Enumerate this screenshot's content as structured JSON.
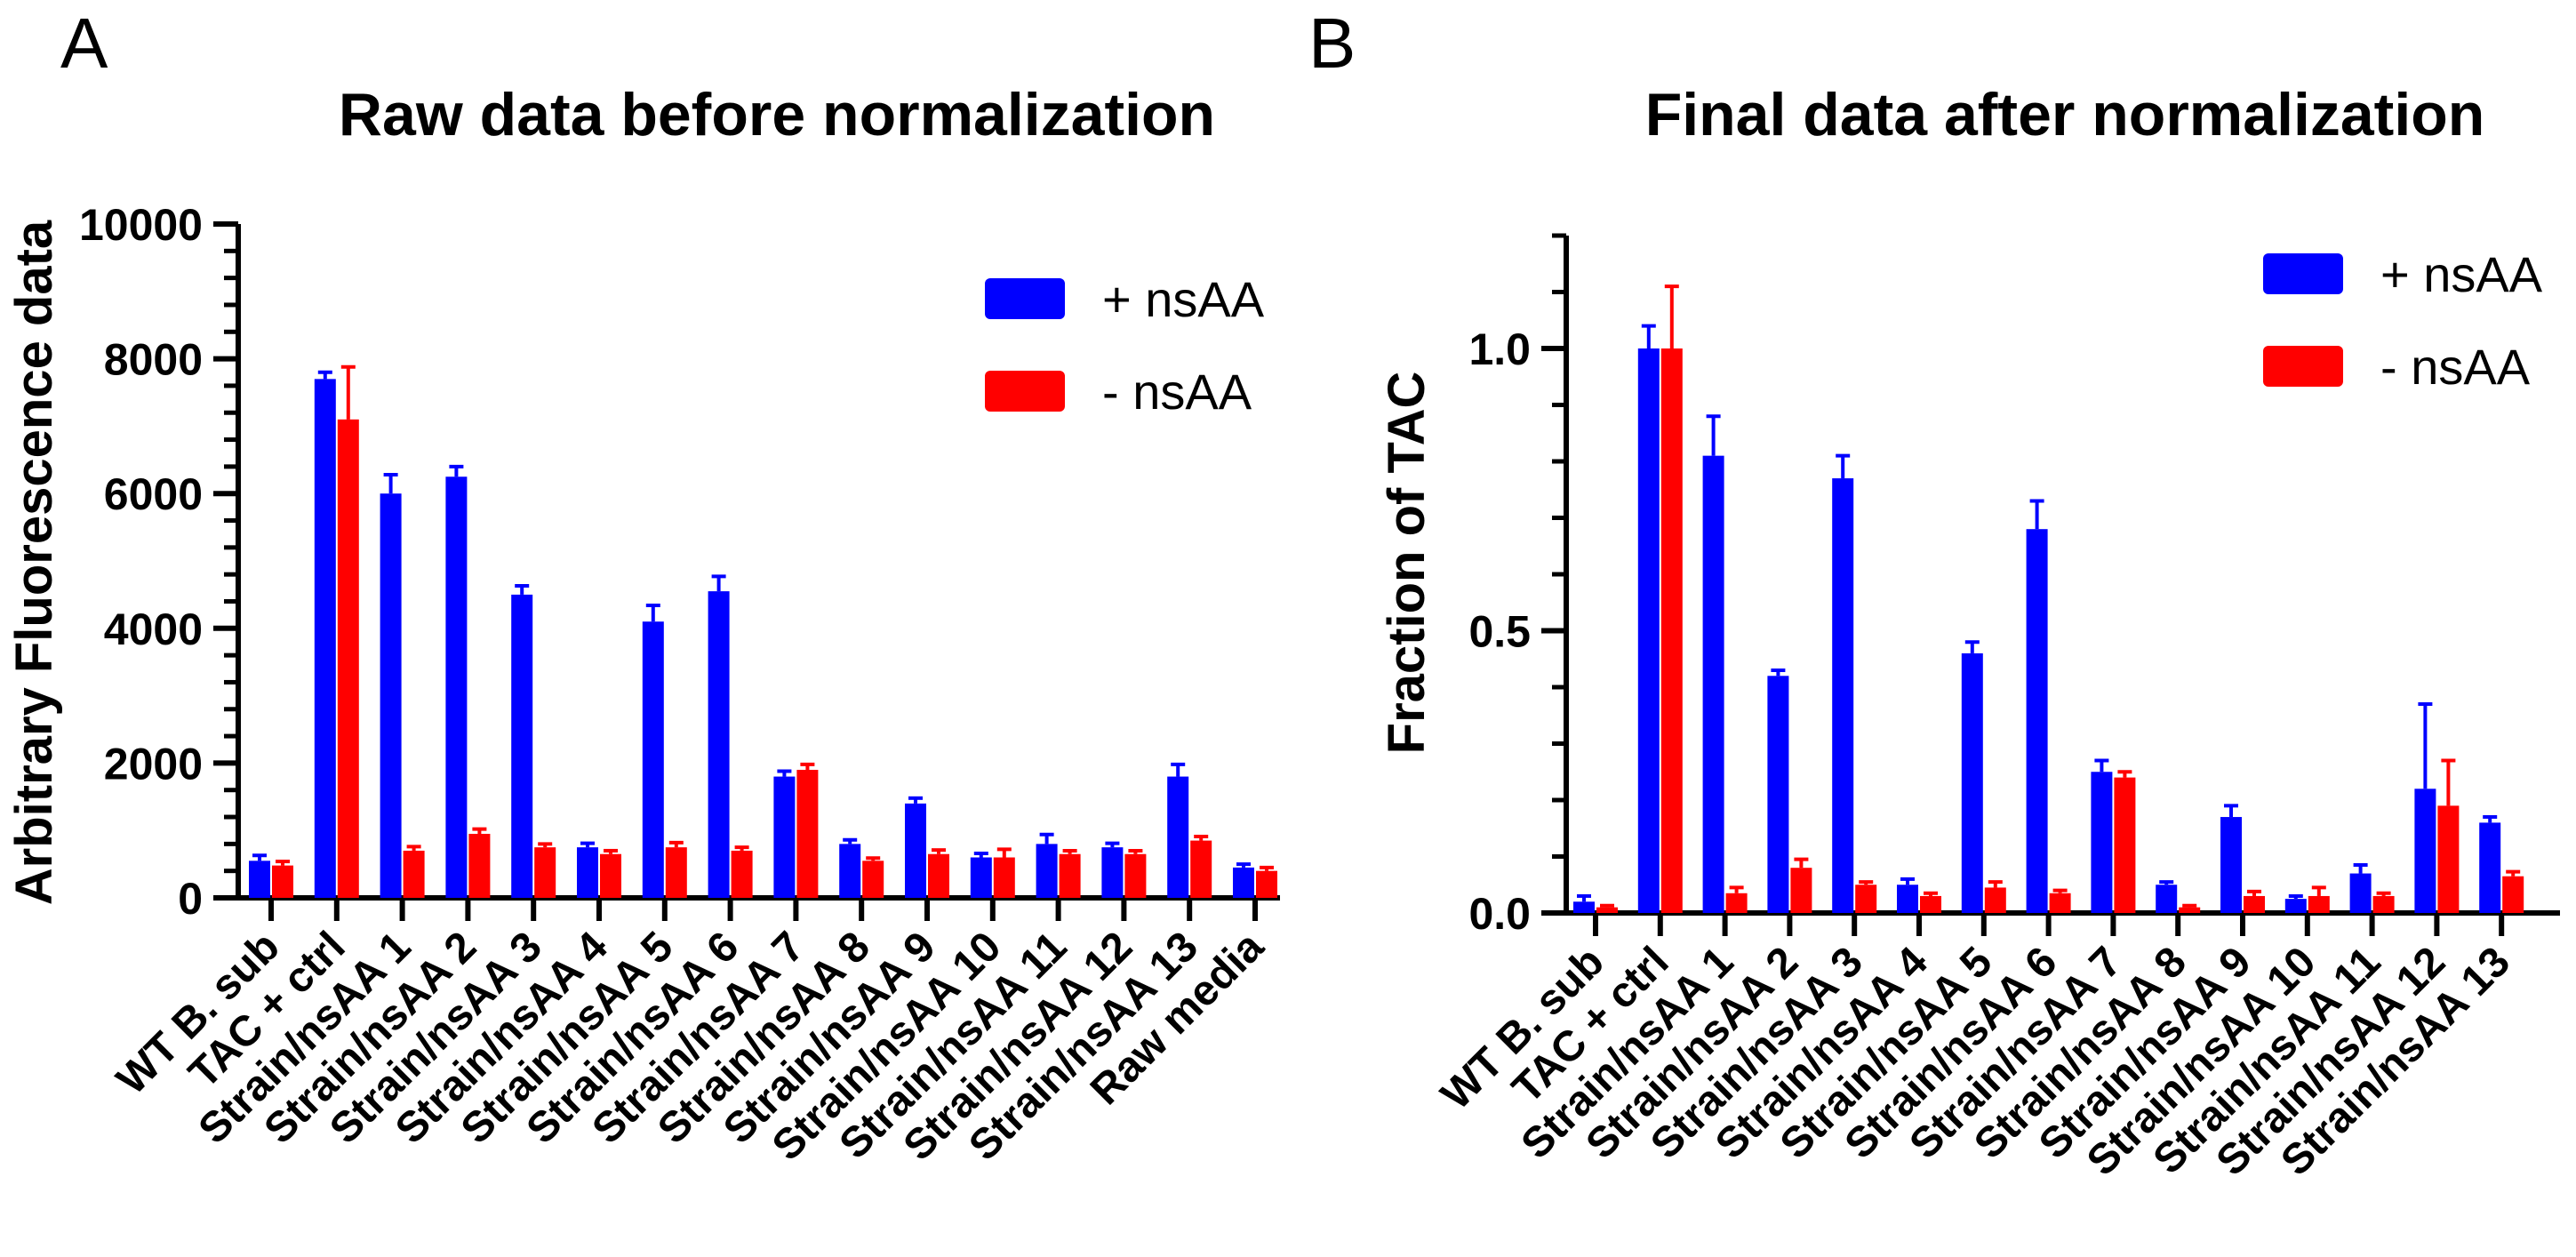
{
  "colors": {
    "plus": "#0000ff",
    "minus": "#ff0000",
    "axis": "#000000"
  },
  "chart_data": [
    {
      "type": "bar",
      "panel": "A",
      "title": "Raw data before normalization",
      "xlabel": "",
      "ylabel": "Arbitrary Fluorescence data",
      "ylim": [
        0,
        10000
      ],
      "yticks": [
        0,
        2000,
        4000,
        6000,
        8000,
        10000
      ],
      "ytick_labels": [
        "0",
        "2000",
        "4000",
        "6000",
        "8000",
        "10000"
      ],
      "legend_position": "top-right",
      "categories": [
        "WT B. sub",
        "TAC + ctrl",
        "Strain/nsAA 1",
        "Strain/nsAA 2",
        "Strain/nsAA 3",
        "Strain/nsAA 4",
        "Strain/nsAA 5",
        "Strain/nsAA 6",
        "Strain/nsAA 7",
        "Strain/nsAA 8",
        "Strain/nsAA 9",
        "Strain/nsAA 10",
        "Strain/nsAA 11",
        "Strain/nsAA 12",
        "Strain/nsAA 13",
        "Raw media"
      ],
      "series": [
        {
          "name": "+ nsAA",
          "color": "#0000ff",
          "values": [
            550,
            7700,
            6000,
            6250,
            4500,
            750,
            4100,
            4550,
            1800,
            800,
            1400,
            600,
            800,
            750,
            1800,
            450
          ],
          "errors": [
            80,
            100,
            280,
            150,
            130,
            60,
            240,
            220,
            80,
            60,
            80,
            60,
            140,
            60,
            180,
            50
          ]
        },
        {
          "name": "- nsAA",
          "color": "#ff0000",
          "values": [
            480,
            7100,
            700,
            950,
            750,
            650,
            750,
            700,
            1900,
            550,
            650,
            600,
            650,
            650,
            850,
            400
          ],
          "errors": [
            60,
            780,
            60,
            70,
            50,
            50,
            70,
            50,
            80,
            40,
            60,
            120,
            50,
            50,
            60,
            50
          ]
        }
      ]
    },
    {
      "type": "bar",
      "panel": "B",
      "title": "Final data after normalization",
      "xlabel": "",
      "ylabel": "Fraction of TAC",
      "ylim": [
        0,
        1.2
      ],
      "yticks": [
        0.0,
        0.5,
        1.0
      ],
      "ytick_labels": [
        "0.0",
        "0.5",
        "1.0"
      ],
      "legend_position": "top-right",
      "categories": [
        "WT B. sub",
        "TAC + ctrl",
        "Strain/nsAA 1",
        "Strain/nsAA 2",
        "Strain/nsAA 3",
        "Strain/nsAA 4",
        "Strain/nsAA 5",
        "Strain/nsAA 6",
        "Strain/nsAA 7",
        "Strain/nsAA 8",
        "Strain/nsAA 9",
        "Strain/nsAA 10",
        "Strain/nsAA 11",
        "Strain/nsAA 12",
        "Strain/nsAA 13"
      ],
      "series": [
        {
          "name": "+ nsAA",
          "color": "#0000ff",
          "values": [
            0.02,
            1.0,
            0.81,
            0.42,
            0.77,
            0.05,
            0.46,
            0.68,
            0.25,
            0.05,
            0.17,
            0.025,
            0.07,
            0.22,
            0.16
          ],
          "errors": [
            0.01,
            0.04,
            0.07,
            0.01,
            0.04,
            0.01,
            0.02,
            0.05,
            0.02,
            0.005,
            0.02,
            0.005,
            0.015,
            0.15,
            0.01
          ]
        },
        {
          "name": "- nsAA",
          "color": "#ff0000",
          "values": [
            0.01,
            1.0,
            0.035,
            0.08,
            0.05,
            0.03,
            0.045,
            0.035,
            0.24,
            0.01,
            0.03,
            0.03,
            0.03,
            0.19,
            0.065
          ],
          "errors": [
            0.003,
            0.11,
            0.01,
            0.015,
            0.005,
            0.005,
            0.01,
            0.005,
            0.01,
            0.003,
            0.008,
            0.015,
            0.005,
            0.08,
            0.008
          ]
        }
      ]
    }
  ]
}
